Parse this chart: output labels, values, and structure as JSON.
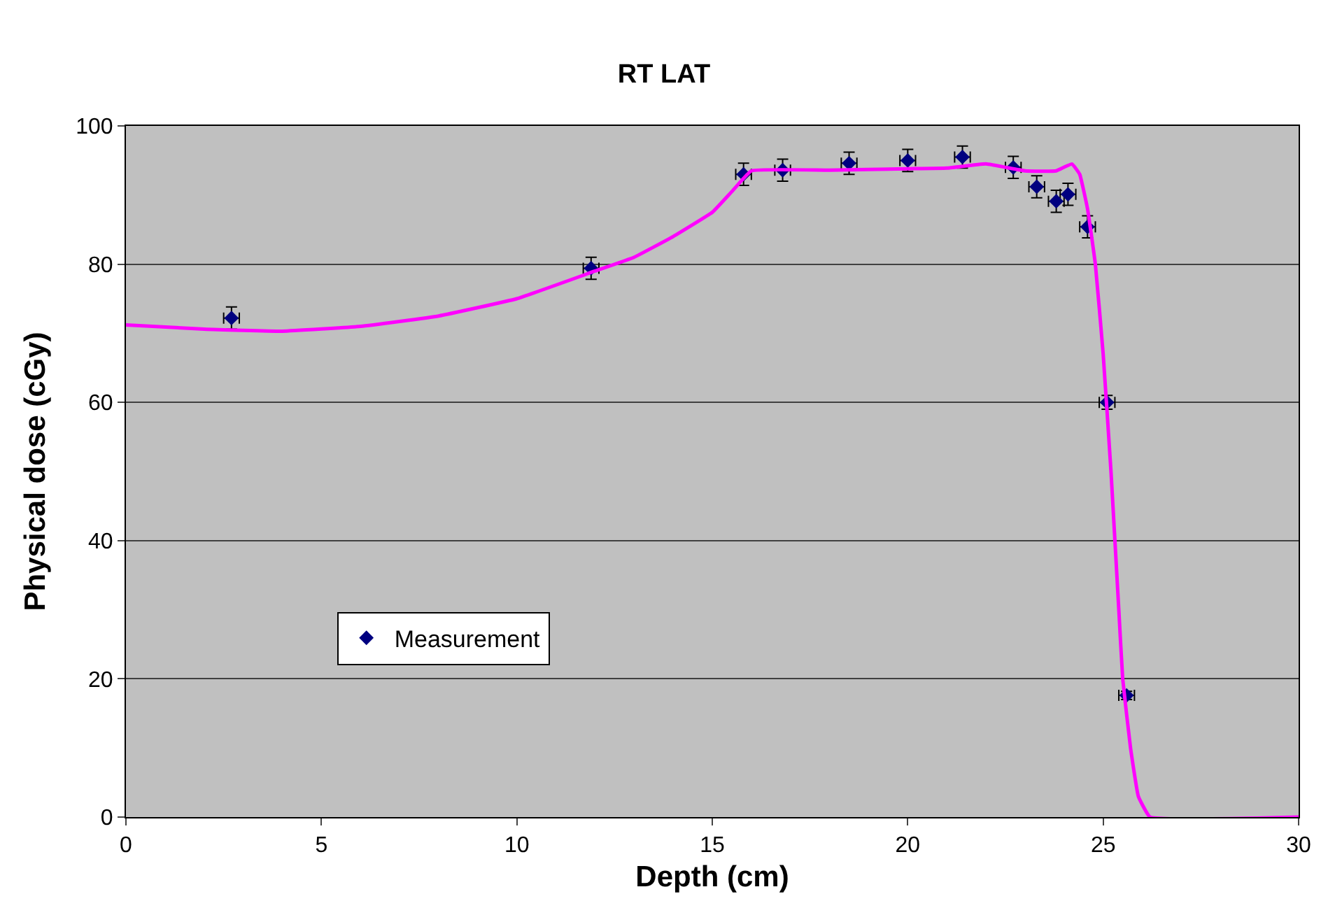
{
  "chart_data": {
    "type": "scatter",
    "title": "RT LAT",
    "xlabel": "Depth (cm)",
    "ylabel": "Physical dose (cGy)",
    "xlim": [
      0,
      30
    ],
    "xticks": [
      0,
      5,
      10,
      15,
      20,
      25,
      30
    ],
    "ylim": [
      0,
      100
    ],
    "yticks": [
      0,
      20,
      40,
      60,
      80,
      100
    ],
    "grid": "y",
    "legend": "left",
    "marker": "diamond",
    "series": [
      {
        "name": "Measurement",
        "color": "#000080",
        "x": [
          2.7,
          11.9,
          15.8,
          16.8,
          18.5,
          20.0,
          21.4,
          22.7,
          23.3,
          23.8,
          24.1,
          24.6,
          25.1,
          25.6
        ],
        "values": [
          72.2,
          79.4,
          93.0,
          93.6,
          94.6,
          95.0,
          95.5,
          94.0,
          91.2,
          89.1,
          90.1,
          85.4,
          60.0,
          17.6
        ],
        "errors": [
          1.6,
          1.6,
          1.6,
          1.6,
          1.6,
          1.6,
          1.6,
          1.6,
          1.6,
          1.6,
          1.6,
          1.6,
          1.0,
          0.6
        ],
        "xerrors": [
          0.2,
          0.2,
          0.2,
          0.2,
          0.2,
          0.2,
          0.2,
          0.2,
          0.2,
          0.2,
          0.2,
          0.2,
          0.2,
          0.2
        ]
      },
      {
        "type": "line",
        "color": "#ff00ff",
        "marker": "none",
        "line_style": "solid",
        "x": [
          0,
          2,
          4,
          6,
          8,
          10,
          12,
          13,
          14,
          15,
          15.5,
          16,
          18,
          20,
          21,
          22,
          23,
          23.8,
          24.2,
          24.4,
          24.6,
          24.8,
          25,
          25.2,
          25.4,
          25.5,
          25.7,
          25.9,
          26.2,
          30
        ],
        "values": [
          71.2,
          70.6,
          70.3,
          71.0,
          72.5,
          75.0,
          79.0,
          81.0,
          84.0,
          87.5,
          90.5,
          93.5,
          93.6,
          93.8,
          93.9,
          94.5,
          93.5,
          93.5,
          94.5,
          93.0,
          88.0,
          80.0,
          67.0,
          50.0,
          30.0,
          20.0,
          10.0,
          3.0,
          0,
          0
        ]
      }
    ]
  }
}
